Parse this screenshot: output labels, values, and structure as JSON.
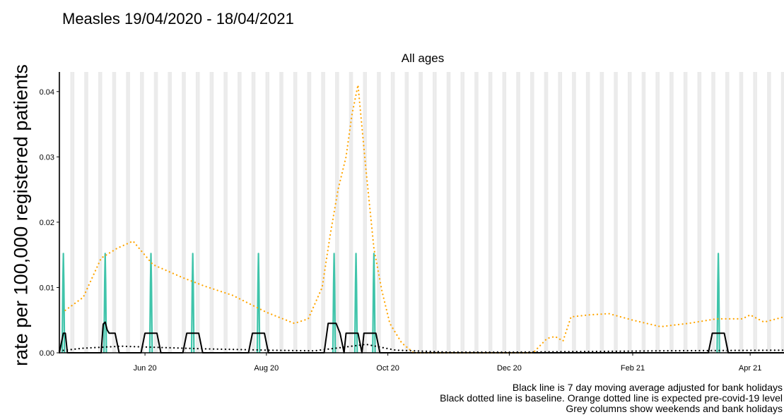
{
  "title": "Measles 19/04/2020 - 18/04/2021",
  "caption": {
    "line1": "Black line is 7 day moving average adjusted for bank holidays",
    "line2": "Black dotted line is baseline. Orange dotted line is expected pre-covid-19 level",
    "line3": "Grey columns show weekends and bank holidays"
  },
  "colors": {
    "daily": "#40c4aa",
    "moving_average": "#000000",
    "baseline": "#000000",
    "expected": "#ffa500",
    "weekend_column": "#ebebeb"
  },
  "chart_data": {
    "type": "line",
    "facet_title": "All ages",
    "xlabel": "",
    "ylabel": "rate per 100,000 registered patients",
    "x_range": [
      "2020-04-19",
      "2021-04-18"
    ],
    "ylim": [
      0,
      0.043
    ],
    "y_ticks": [
      0.0,
      0.01,
      0.02,
      0.03,
      0.04
    ],
    "y_tick_labels": [
      "0.00",
      "0.01",
      "0.02",
      "0.03",
      "0.04"
    ],
    "x_ticks": [
      {
        "date": "2020-06-01",
        "label": "Jun 20"
      },
      {
        "date": "2020-08-01",
        "label": "Aug 20"
      },
      {
        "date": "2020-10-01",
        "label": "Oct 20"
      },
      {
        "date": "2020-12-01",
        "label": "Dec 20"
      },
      {
        "date": "2021-02-01",
        "label": "Feb 21"
      },
      {
        "date": "2021-04-01",
        "label": "Apr 21"
      }
    ],
    "grid": false,
    "weekend_columns": "weekends and bank holidays",
    "series": [
      {
        "name": "Daily rate",
        "style": "spike",
        "points": [
          {
            "x": "2020-04-21",
            "y": 0.0152
          },
          {
            "x": "2020-05-12",
            "y": 0.0152
          },
          {
            "x": "2020-06-04",
            "y": 0.0152
          },
          {
            "x": "2020-06-25",
            "y": 0.0152
          },
          {
            "x": "2020-07-28",
            "y": 0.0152
          },
          {
            "x": "2020-09-04",
            "y": 0.0152
          },
          {
            "x": "2020-09-15",
            "y": 0.0152
          },
          {
            "x": "2020-09-24",
            "y": 0.0152
          },
          {
            "x": "2021-03-16",
            "y": 0.0152
          }
        ]
      },
      {
        "name": "7 day moving average",
        "style": "solid",
        "points": [
          {
            "x": "2020-04-19",
            "y": 0
          },
          {
            "x": "2020-04-21",
            "y": 0.003
          },
          {
            "x": "2020-04-22",
            "y": 0.003
          },
          {
            "x": "2020-04-23",
            "y": 0
          },
          {
            "x": "2020-05-10",
            "y": 0
          },
          {
            "x": "2020-05-11",
            "y": 0.0044
          },
          {
            "x": "2020-05-12",
            "y": 0.0047
          },
          {
            "x": "2020-05-13",
            "y": 0.0035
          },
          {
            "x": "2020-05-14",
            "y": 0.003
          },
          {
            "x": "2020-05-17",
            "y": 0.003
          },
          {
            "x": "2020-05-19",
            "y": 0
          },
          {
            "x": "2020-05-30",
            "y": 0
          },
          {
            "x": "2020-06-01",
            "y": 0.003
          },
          {
            "x": "2020-06-07",
            "y": 0.003
          },
          {
            "x": "2020-06-09",
            "y": 0
          },
          {
            "x": "2020-06-20",
            "y": 0
          },
          {
            "x": "2020-06-22",
            "y": 0.003
          },
          {
            "x": "2020-06-28",
            "y": 0.003
          },
          {
            "x": "2020-06-30",
            "y": 0
          },
          {
            "x": "2020-07-23",
            "y": 0
          },
          {
            "x": "2020-07-25",
            "y": 0.003
          },
          {
            "x": "2020-07-31",
            "y": 0.003
          },
          {
            "x": "2020-08-02",
            "y": 0
          },
          {
            "x": "2020-08-30",
            "y": 0
          },
          {
            "x": "2020-09-01",
            "y": 0.0045
          },
          {
            "x": "2020-09-05",
            "y": 0.0045
          },
          {
            "x": "2020-09-07",
            "y": 0.003
          },
          {
            "x": "2020-09-09",
            "y": 0
          },
          {
            "x": "2020-09-10",
            "y": 0.003
          },
          {
            "x": "2020-09-16",
            "y": 0.003
          },
          {
            "x": "2020-09-18",
            "y": 0
          },
          {
            "x": "2020-09-19",
            "y": 0.003
          },
          {
            "x": "2020-09-25",
            "y": 0.003
          },
          {
            "x": "2020-09-27",
            "y": 0
          },
          {
            "x": "2021-03-11",
            "y": 0
          },
          {
            "x": "2021-03-13",
            "y": 0.003
          },
          {
            "x": "2021-03-19",
            "y": 0.003
          },
          {
            "x": "2021-03-21",
            "y": 0
          },
          {
            "x": "2021-04-18",
            "y": 0
          }
        ]
      },
      {
        "name": "Baseline",
        "style": "dotted",
        "points": [
          {
            "x": "2020-04-19",
            "y": 0.0003
          },
          {
            "x": "2020-05-01",
            "y": 0.0007
          },
          {
            "x": "2020-05-20",
            "y": 0.001
          },
          {
            "x": "2020-06-10",
            "y": 0.0008
          },
          {
            "x": "2020-07-01",
            "y": 0.0006
          },
          {
            "x": "2020-08-01",
            "y": 0.0004
          },
          {
            "x": "2020-08-25",
            "y": 0.0003
          },
          {
            "x": "2020-09-10",
            "y": 0.0009
          },
          {
            "x": "2020-09-20",
            "y": 0.0013
          },
          {
            "x": "2020-10-05",
            "y": 0.0004
          },
          {
            "x": "2020-11-01",
            "y": 0.0001
          },
          {
            "x": "2020-12-01",
            "y": 0.0001
          },
          {
            "x": "2021-01-15",
            "y": 0.0002
          },
          {
            "x": "2021-02-15",
            "y": 0.0003
          },
          {
            "x": "2021-04-18",
            "y": 0.0004
          }
        ]
      },
      {
        "name": "Expected pre-covid-19 level",
        "style": "dotted",
        "points": [
          {
            "x": "2020-04-22",
            "y": 0.0065
          },
          {
            "x": "2020-05-01",
            "y": 0.0085
          },
          {
            "x": "2020-05-10",
            "y": 0.0145
          },
          {
            "x": "2020-05-18",
            "y": 0.016
          },
          {
            "x": "2020-05-26",
            "y": 0.0171
          },
          {
            "x": "2020-06-05",
            "y": 0.0135
          },
          {
            "x": "2020-06-20",
            "y": 0.0115
          },
          {
            "x": "2020-07-01",
            "y": 0.0102
          },
          {
            "x": "2020-07-15",
            "y": 0.0088
          },
          {
            "x": "2020-08-01",
            "y": 0.0062
          },
          {
            "x": "2020-08-15",
            "y": 0.0045
          },
          {
            "x": "2020-08-22",
            "y": 0.0052
          },
          {
            "x": "2020-08-29",
            "y": 0.01
          },
          {
            "x": "2020-09-02",
            "y": 0.018
          },
          {
            "x": "2020-09-06",
            "y": 0.025
          },
          {
            "x": "2020-09-10",
            "y": 0.03
          },
          {
            "x": "2020-09-13",
            "y": 0.0365
          },
          {
            "x": "2020-09-16",
            "y": 0.041
          },
          {
            "x": "2020-09-20",
            "y": 0.028
          },
          {
            "x": "2020-09-24",
            "y": 0.016
          },
          {
            "x": "2020-09-28",
            "y": 0.0095
          },
          {
            "x": "2020-10-02",
            "y": 0.0045
          },
          {
            "x": "2020-10-08",
            "y": 0.0015
          },
          {
            "x": "2020-10-14",
            "y": 0.0
          },
          {
            "x": "2020-12-13",
            "y": 0.0
          },
          {
            "x": "2020-12-20",
            "y": 0.0022
          },
          {
            "x": "2020-12-24",
            "y": 0.0025
          },
          {
            "x": "2020-12-28",
            "y": 0.0018
          },
          {
            "x": "2021-01-01",
            "y": 0.0055
          },
          {
            "x": "2021-01-10",
            "y": 0.0058
          },
          {
            "x": "2021-01-20",
            "y": 0.006
          },
          {
            "x": "2021-02-01",
            "y": 0.005
          },
          {
            "x": "2021-02-15",
            "y": 0.004
          },
          {
            "x": "2021-03-01",
            "y": 0.0045
          },
          {
            "x": "2021-03-15",
            "y": 0.0052
          },
          {
            "x": "2021-03-28",
            "y": 0.0052
          },
          {
            "x": "2021-04-01",
            "y": 0.0058
          },
          {
            "x": "2021-04-08",
            "y": 0.0047
          },
          {
            "x": "2021-04-18",
            "y": 0.0055
          }
        ]
      }
    ]
  }
}
